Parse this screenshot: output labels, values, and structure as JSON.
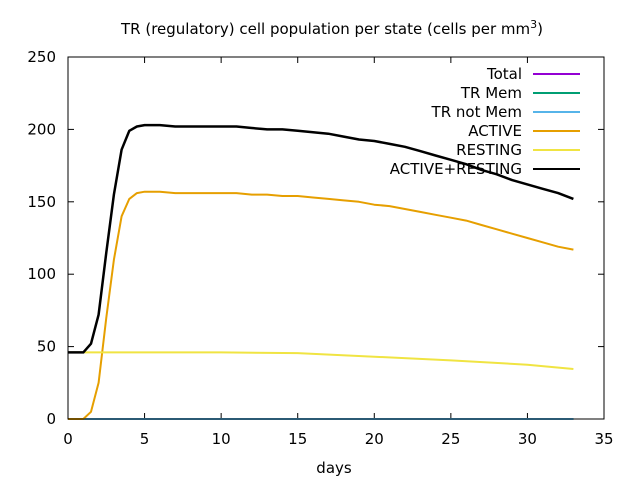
{
  "chart_data": {
    "type": "line",
    "title": "TR (regulatory) cell population per state (cells per mm",
    "title_superscript": "3",
    "title_suffix": ")",
    "xlabel": "days",
    "ylabel": "",
    "xlim": [
      0,
      35
    ],
    "ylim": [
      0,
      250
    ],
    "xticks": [
      "0",
      "5",
      "10",
      "15",
      "20",
      "25",
      "30",
      "35"
    ],
    "yticks": [
      "0",
      "50",
      "100",
      "150",
      "200",
      "250"
    ],
    "grid": false,
    "legend_position": "top-right",
    "series": [
      {
        "name": "Total",
        "color": "#9400d3",
        "x": [
          0,
          33
        ],
        "y": [
          0,
          0
        ]
      },
      {
        "name": "TR Mem",
        "color": "#009e73",
        "x": [
          0,
          33
        ],
        "y": [
          0,
          0
        ]
      },
      {
        "name": "TR not Mem",
        "color": "#56b4e9",
        "x": [
          0,
          33
        ],
        "y": [
          0,
          0
        ]
      },
      {
        "name": "ACTIVE",
        "color": "#e69f00",
        "x": [
          0,
          1,
          1.5,
          2,
          2.5,
          3,
          3.5,
          4,
          4.5,
          5,
          6,
          7,
          8,
          9,
          10,
          11,
          12,
          13,
          14,
          15,
          16,
          17,
          18,
          19,
          20,
          21,
          22,
          23,
          24,
          25,
          26,
          27,
          28,
          29,
          30,
          31,
          32,
          33
        ],
        "y": [
          0,
          0,
          5,
          25,
          70,
          110,
          140,
          152,
          156,
          157,
          157,
          156,
          156,
          156,
          156,
          156,
          155,
          155,
          154,
          154,
          153,
          152,
          151,
          150,
          148,
          147,
          145,
          143,
          141,
          139,
          137,
          134,
          131,
          128,
          125,
          122,
          119,
          117
        ]
      },
      {
        "name": "RESTING",
        "color": "#f0e442",
        "x": [
          0,
          2,
          5,
          10,
          15,
          20,
          25,
          30,
          33
        ],
        "y": [
          46,
          46,
          46,
          46,
          45.5,
          43,
          40.5,
          37.5,
          34.5
        ]
      },
      {
        "name": "ACTIVE+RESTING",
        "color": "#000000",
        "x": [
          0,
          0.5,
          1,
          1.5,
          2,
          2.5,
          3,
          3.5,
          4,
          4.5,
          5,
          6,
          7,
          8,
          9,
          10,
          11,
          12,
          13,
          14,
          15,
          16,
          17,
          18,
          19,
          20,
          21,
          22,
          23,
          24,
          25,
          26,
          27,
          28,
          29,
          30,
          31,
          32,
          33
        ],
        "y": [
          46,
          46,
          46,
          52,
          72,
          115,
          155,
          186,
          199,
          202,
          203,
          203,
          202,
          202,
          202,
          202,
          202,
          201,
          200,
          200,
          199,
          198,
          197,
          195,
          193,
          192,
          190,
          188,
          185,
          182,
          179,
          176,
          172,
          169,
          165,
          162,
          159,
          156,
          152
        ]
      }
    ]
  }
}
